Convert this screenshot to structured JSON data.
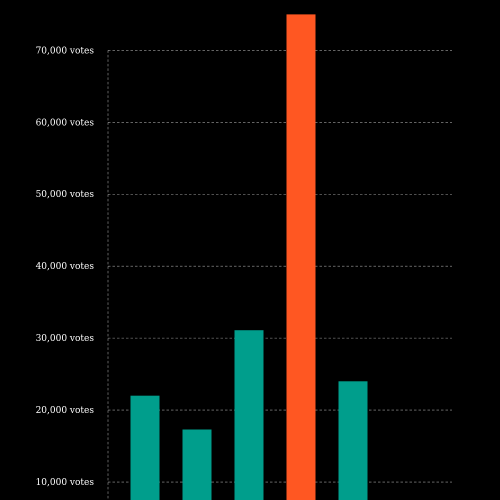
{
  "chart_data": {
    "type": "bar",
    "title": "",
    "xlabel": "",
    "ylabel": "",
    "categories": [
      "",
      "",
      "",
      "",
      ""
    ],
    "values": [
      22000,
      17300,
      31100,
      75000,
      24000
    ],
    "highlight_index": 3,
    "ylim": [
      7500,
      77000
    ],
    "grid": true,
    "grid_style": "dashed",
    "yticks": [
      10000,
      20000,
      30000,
      40000,
      50000,
      60000,
      70000
    ],
    "ytick_labels": [
      "10,000 votes",
      "20,000 votes",
      "30,000 votes",
      "40,000 votes",
      "50,000 votes",
      "60,000 votes",
      "70,000 votes"
    ],
    "colors": {
      "background": "#000000",
      "bar": "#009e8c",
      "highlight": "#ff5722",
      "grid": "#bdbdbd",
      "text": "#ffffff"
    }
  }
}
